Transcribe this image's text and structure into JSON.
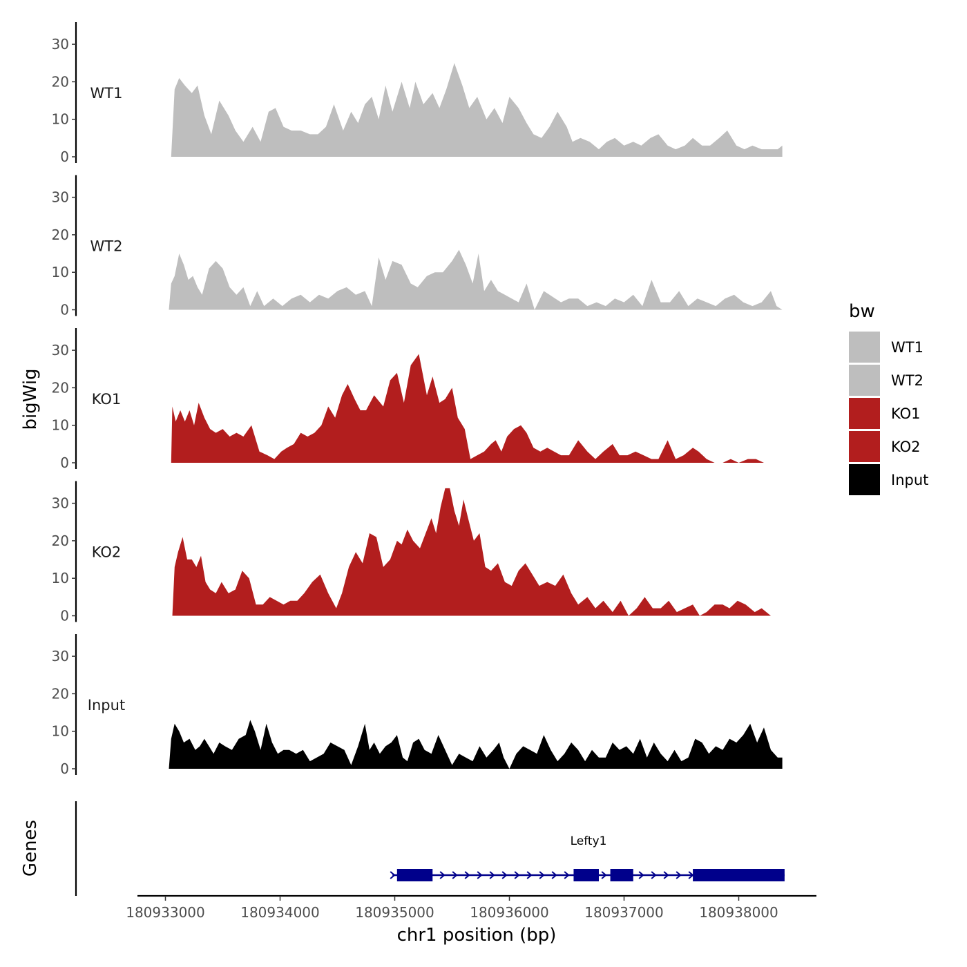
{
  "chart_data": {
    "type": "area",
    "region": {
      "chrom": "chr1",
      "start": 180933050,
      "end": 180938380
    },
    "xlabel": "chr1 position (bp)",
    "ylabel": "bigWig",
    "genes_label": "Genes",
    "ylim": [
      0,
      36
    ],
    "yticks": [
      0,
      10,
      20,
      30
    ],
    "xticks": [
      180933000,
      180934000,
      180935000,
      180936000,
      180937000,
      180938000
    ],
    "legend": {
      "title": "bw",
      "entries": [
        {
          "name": "WT1",
          "color": "#bebebe"
        },
        {
          "name": "WT2",
          "color": "#bebebe"
        },
        {
          "name": "KO1",
          "color": "#b21e1e"
        },
        {
          "name": "KO2",
          "color": "#b21e1e"
        },
        {
          "name": "Input",
          "color": "#000000"
        }
      ]
    },
    "series": [
      {
        "name": "WT1",
        "color": "#bebebe",
        "x": [
          180933050,
          180933080,
          180933120,
          180933170,
          180933230,
          180933280,
          180933340,
          180933400,
          180933470,
          180933550,
          180933610,
          180933680,
          180933760,
          180933830,
          180933900,
          180933960,
          180934030,
          180934100,
          180934180,
          180934260,
          180934330,
          180934400,
          180934470,
          180934550,
          180934620,
          180934680,
          180934740,
          180934800,
          180934860,
          180934920,
          180934980,
          180935060,
          180935130,
          180935180,
          180935250,
          180935330,
          180935390,
          180935450,
          180935520,
          180935590,
          180935650,
          180935720,
          180935800,
          180935870,
          180935940,
          180936000,
          180936080,
          180936150,
          180936210,
          180936280,
          180936350,
          180936420,
          180936500,
          180936550,
          180936620,
          180936700,
          180936780,
          180936850,
          180936920,
          180937000,
          180937080,
          180937150,
          180937230,
          180937300,
          180937380,
          180937450,
          180937530,
          180937600,
          180937680,
          180937750,
          180937830,
          180937900,
          180937980,
          180938050,
          180938120,
          180938200,
          180938280,
          180938340,
          180938380
        ],
        "y": [
          0,
          18,
          21,
          19,
          17,
          19,
          11,
          6,
          15,
          11,
          7,
          4,
          8,
          4,
          12,
          13,
          8,
          7,
          7,
          6,
          6,
          8,
          14,
          7,
          12,
          9,
          14,
          16,
          10,
          19,
          12,
          20,
          13,
          20,
          14,
          17,
          13,
          18,
          25,
          19,
          13,
          16,
          10,
          13,
          9,
          16,
          13,
          9,
          6,
          5,
          8,
          12,
          8,
          4,
          5,
          4,
          2,
          4,
          5,
          3,
          4,
          3,
          5,
          6,
          3,
          2,
          3,
          5,
          3,
          3,
          5,
          7,
          3,
          2,
          3,
          2,
          2,
          2,
          3
        ]
      },
      {
        "name": "WT2",
        "color": "#bebebe",
        "x": [
          180933030,
          180933050,
          180933080,
          180933120,
          180933160,
          180933200,
          180933240,
          180933280,
          180933320,
          180933380,
          180933440,
          180933500,
          180933560,
          180933620,
          180933680,
          180933740,
          180933800,
          180933860,
          180933940,
          180934020,
          180934100,
          180934180,
          180934260,
          180934340,
          180934420,
          180934500,
          180934580,
          180934660,
          180934740,
          180934800,
          180934860,
          180934920,
          180934980,
          180935060,
          180935140,
          180935200,
          180935280,
          180935350,
          180935420,
          180935500,
          180935560,
          180935620,
          180935680,
          180935730,
          180935780,
          180935840,
          180935900,
          180935960,
          180936020,
          180936080,
          180936150,
          180936220,
          180936300,
          180936350,
          180936400,
          180936450,
          180936520,
          180936600,
          180936680,
          180936760,
          180936840,
          180936920,
          180937000,
          180937080,
          180937160,
          180937240,
          180937320,
          180937400,
          180937480,
          180937560,
          180937640,
          180937720,
          180937800,
          180937880,
          180937960,
          180938040,
          180938120,
          180938200,
          180938280,
          180938330,
          180938380
        ],
        "y": [
          0,
          7,
          9,
          15,
          12,
          8,
          9,
          6,
          4,
          11,
          13,
          11,
          6,
          4,
          6,
          1,
          5,
          1,
          3,
          1,
          3,
          4,
          2,
          4,
          3,
          5,
          6,
          4,
          5,
          1,
          14,
          8,
          13,
          12,
          7,
          6,
          9,
          10,
          10,
          13,
          16,
          12,
          7,
          15,
          5,
          8,
          5,
          4,
          3,
          2,
          7,
          0,
          5,
          4,
          3,
          2,
          3,
          3,
          1,
          2,
          1,
          3,
          2,
          4,
          1,
          8,
          2,
          2,
          5,
          1,
          3,
          2,
          1,
          3,
          4,
          2,
          1,
          2,
          5,
          1,
          0
        ]
      },
      {
        "name": "KO1",
        "color": "#b21e1e",
        "x": [
          180933050,
          180933060,
          180933090,
          180933130,
          180933170,
          180933210,
          180933250,
          180933290,
          180933340,
          180933390,
          180933440,
          180933500,
          180933560,
          180933620,
          180933680,
          180933750,
          180933820,
          180933890,
          180933950,
          180934010,
          180934060,
          180934120,
          180934180,
          180934240,
          180934300,
          180934360,
          180934420,
          180934480,
          180934540,
          180934590,
          180934650,
          180934700,
          180934750,
          180934820,
          180934900,
          180934960,
          180935020,
          180935080,
          180935140,
          180935210,
          180935280,
          180935330,
          180935390,
          180935440,
          180935500,
          180935550,
          180935610,
          180935660,
          180935720,
          180935780,
          180935840,
          180935880,
          180935930,
          180935980,
          180936040,
          180936100,
          180936150,
          180936210,
          180936270,
          180936330,
          180936390,
          180936450,
          180936520,
          180936600,
          180936680,
          180936750,
          180936820,
          180936900,
          180936960,
          180937030,
          180937100,
          180937170,
          180937240,
          180937300,
          180937380,
          180937450,
          180937520,
          180937600,
          180937650,
          180937720,
          180937790,
          180937860,
          180937930,
          180938000,
          180938080,
          180938150,
          180938220,
          180938280,
          180938340,
          180938380
        ],
        "y": [
          0,
          15,
          11,
          14,
          11,
          14,
          10,
          16,
          12,
          9,
          8,
          9,
          7,
          8,
          7,
          10,
          3,
          2,
          1,
          3,
          4,
          5,
          8,
          7,
          8,
          10,
          15,
          12,
          18,
          21,
          17,
          14,
          14,
          18,
          15,
          22,
          24,
          16,
          26,
          29,
          18,
          23,
          16,
          17,
          20,
          12,
          9,
          1,
          2,
          3,
          5,
          6,
          3,
          7,
          9,
          10,
          8,
          4,
          3,
          4,
          3,
          2,
          2,
          6,
          3,
          1,
          3,
          5,
          2,
          2,
          3,
          2,
          1,
          1,
          6,
          1,
          2,
          4,
          3,
          1,
          0,
          0,
          1,
          0,
          1,
          1,
          0,
          0,
          0,
          0
        ]
      },
      {
        "name": "KO2",
        "color": "#b21e1e",
        "x": [
          180933060,
          180933080,
          180933110,
          180933150,
          180933190,
          180933230,
          180933270,
          180933310,
          180933350,
          180933390,
          180933440,
          180933490,
          180933550,
          180933610,
          180933670,
          180933730,
          180933790,
          180933850,
          180933910,
          180933970,
          180934030,
          180934090,
          180934150,
          180934210,
          180934280,
          180934350,
          180934420,
          180934490,
          180934540,
          180934600,
          180934660,
          180934720,
          180934780,
          180934840,
          180934900,
          180934960,
          180935020,
          180935060,
          180935110,
          180935160,
          180935220,
          180935270,
          180935320,
          180935360,
          180935400,
          180935440,
          180935480,
          180935520,
          180935560,
          180935600,
          180935640,
          180935690,
          180935740,
          180935790,
          180935840,
          180935900,
          180935960,
          180936020,
          180936080,
          180936140,
          180936200,
          180936260,
          180936330,
          180936400,
          180936470,
          180936540,
          180936600,
          180936680,
          180936750,
          180936820,
          180936900,
          180936970,
          180937040,
          180937110,
          180937180,
          180937250,
          180937320,
          180937390,
          180937460,
          180937530,
          180937600,
          180937660,
          180937720,
          180937790,
          180937860,
          180937920,
          180937990,
          180938060,
          180938140,
          180938200,
          180938280
        ],
        "y": [
          0,
          13,
          17,
          21,
          15,
          15,
          13,
          16,
          9,
          7,
          6,
          9,
          6,
          7,
          12,
          10,
          3,
          3,
          5,
          4,
          3,
          4,
          4,
          6,
          9,
          11,
          6,
          2,
          6,
          13,
          17,
          14,
          22,
          21,
          13,
          15,
          20,
          19,
          23,
          20,
          18,
          22,
          26,
          22,
          29,
          34,
          34,
          28,
          24,
          31,
          26,
          20,
          22,
          13,
          12,
          14,
          9,
          8,
          12,
          14,
          11,
          8,
          9,
          8,
          11,
          6,
          3,
          5,
          2,
          4,
          1,
          4,
          0,
          2,
          5,
          2,
          2,
          4,
          1,
          2,
          3,
          0,
          1,
          3,
          3,
          2,
          4,
          3,
          1,
          2,
          0
        ]
      },
      {
        "name": "Input",
        "color": "#000000",
        "x": [
          180933030,
          180933050,
          180933080,
          180933120,
          180933160,
          180933210,
          180933260,
          180933300,
          180933340,
          180933380,
          180933420,
          180933470,
          180933520,
          180933580,
          180933640,
          180933700,
          180933740,
          180933780,
          180933830,
          180933880,
          180933930,
          180933980,
          180934030,
          180934080,
          180934140,
          180934200,
          180934260,
          180934320,
          180934380,
          180934440,
          180934500,
          180934560,
          180934620,
          180934680,
          180934740,
          180934780,
          180934820,
          180934870,
          180934920,
          180934970,
          180935020,
          180935070,
          180935110,
          180935160,
          180935210,
          180935260,
          180935320,
          180935380,
          180935440,
          180935500,
          180935560,
          180935620,
          180935680,
          180935740,
          180935800,
          180935860,
          180935910,
          180935950,
          180936000,
          180936060,
          180936120,
          180936180,
          180936240,
          180936300,
          180936360,
          180936420,
          180936480,
          180936540,
          180936600,
          180936660,
          180936720,
          180936780,
          180936840,
          180936900,
          180936960,
          180937020,
          180937080,
          180937140,
          180937200,
          180937260,
          180937320,
          180937380,
          180937440,
          180937500,
          180937560,
          180937620,
          180937680,
          180937740,
          180937800,
          180937860,
          180937920,
          180937980,
          180938040,
          180938100,
          180938160,
          180938220,
          180938280,
          180938340,
          180938380
        ],
        "y": [
          0,
          8,
          12,
          10,
          7,
          8,
          5,
          6,
          8,
          6,
          4,
          7,
          6,
          5,
          8,
          9,
          13,
          10,
          5,
          12,
          7,
          4,
          5,
          5,
          4,
          5,
          2,
          3,
          4,
          7,
          6,
          5,
          1,
          6,
          12,
          5,
          7,
          4,
          6,
          7,
          9,
          3,
          2,
          7,
          8,
          5,
          4,
          9,
          5,
          1,
          4,
          3,
          2,
          6,
          3,
          5,
          7,
          3,
          0,
          4,
          6,
          5,
          4,
          9,
          5,
          2,
          4,
          7,
          5,
          2,
          5,
          3,
          3,
          7,
          5,
          6,
          4,
          8,
          3,
          7,
          4,
          2,
          5,
          2,
          3,
          8,
          7,
          4,
          6,
          5,
          8,
          7,
          9,
          12,
          7,
          11,
          5,
          3,
          3
        ]
      }
    ],
    "genes": [
      {
        "name": "Lefty1",
        "start": 180934980,
        "end": 180938400,
        "strand": "+",
        "exons": [
          [
            180935020,
            180935330
          ],
          [
            180936560,
            180936780
          ],
          [
            180936880,
            180937080
          ],
          [
            180937600,
            180938400
          ]
        ]
      }
    ]
  }
}
